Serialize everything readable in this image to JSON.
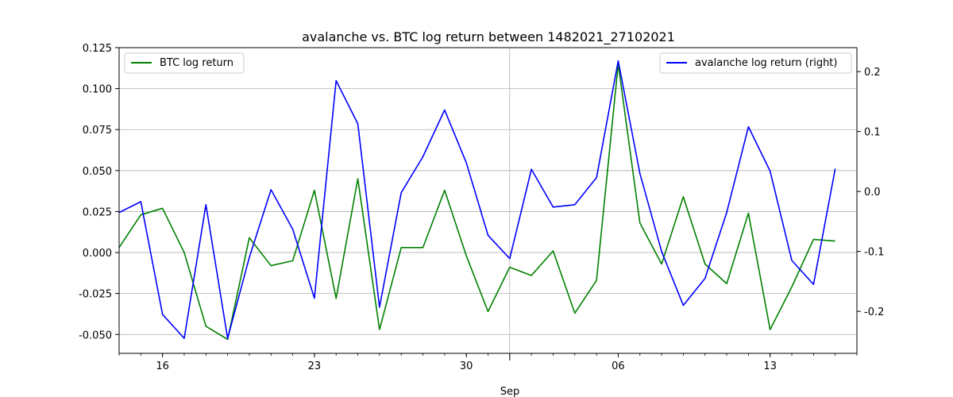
{
  "chart_data": {
    "type": "line",
    "title": "avalanche vs. BTC log return between 1482021_27102021",
    "xlabel": "Sep",
    "x": [
      "2021-08-14",
      "2021-08-15",
      "2021-08-16",
      "2021-08-17",
      "2021-08-18",
      "2021-08-19",
      "2021-08-20",
      "2021-08-21",
      "2021-08-22",
      "2021-08-23",
      "2021-08-24",
      "2021-08-25",
      "2021-08-26",
      "2021-08-27",
      "2021-08-28",
      "2021-08-29",
      "2021-08-30",
      "2021-08-31",
      "2021-09-01",
      "2021-09-02",
      "2021-09-03",
      "2021-09-04",
      "2021-09-05",
      "2021-09-06",
      "2021-09-07",
      "2021-09-08",
      "2021-09-09",
      "2021-09-10",
      "2021-09-11",
      "2021-09-12",
      "2021-09-13",
      "2021-09-14",
      "2021-09-15",
      "2021-09-16"
    ],
    "xlim": [
      "2021-08-14",
      "2021-09-17"
    ],
    "x_ticks": [
      {
        "date": "2021-08-16",
        "label": "16"
      },
      {
        "date": "2021-08-23",
        "label": "23"
      },
      {
        "date": "2021-08-30",
        "label": "30"
      },
      {
        "date": "2021-09-06",
        "label": "06"
      },
      {
        "date": "2021-09-13",
        "label": "13"
      }
    ],
    "x_month_boundary": "2021-09-01",
    "series": [
      {
        "name": "BTC log return",
        "axis": "left",
        "color": "#008000",
        "values": [
          0.003,
          0.023,
          0.027,
          0.0,
          -0.045,
          -0.053,
          0.009,
          -0.008,
          -0.005,
          0.038,
          -0.028,
          0.045,
          -0.047,
          0.003,
          0.003,
          0.038,
          -0.002,
          -0.036,
          -0.009,
          -0.014,
          0.001,
          -0.037,
          -0.017,
          0.115,
          0.018,
          -0.007,
          0.034,
          -0.007,
          -0.019,
          0.024,
          -0.047,
          -0.021,
          0.008,
          0.007
        ]
      },
      {
        "name": "avalanche log return (right)",
        "axis": "right",
        "color": "#0000ff",
        "values": [
          -0.035,
          -0.017,
          -0.205,
          -0.245,
          -0.022,
          -0.245,
          -0.11,
          0.003,
          -0.063,
          -0.178,
          0.185,
          0.113,
          -0.193,
          -0.002,
          0.058,
          0.136,
          0.048,
          -0.073,
          -0.112,
          0.037,
          -0.026,
          -0.022,
          0.023,
          0.218,
          0.03,
          -0.1,
          -0.19,
          -0.145,
          -0.035,
          0.108,
          0.034,
          -0.115,
          -0.155,
          0.038
        ]
      }
    ],
    "y_left": {
      "ylim": [
        -0.0615,
        0.125
      ],
      "ticks": [
        "-0.050",
        "-0.025",
        "0.000",
        "0.025",
        "0.050",
        "0.075",
        "0.100",
        "0.125"
      ]
    },
    "y_right": {
      "ylim": [
        -0.27,
        0.24
      ],
      "ticks": [
        "-0.2",
        "-0.1",
        "0.0",
        "0.1",
        "0.2"
      ]
    },
    "grid": true,
    "legend_left": "top-left",
    "legend_right": "top-right"
  }
}
